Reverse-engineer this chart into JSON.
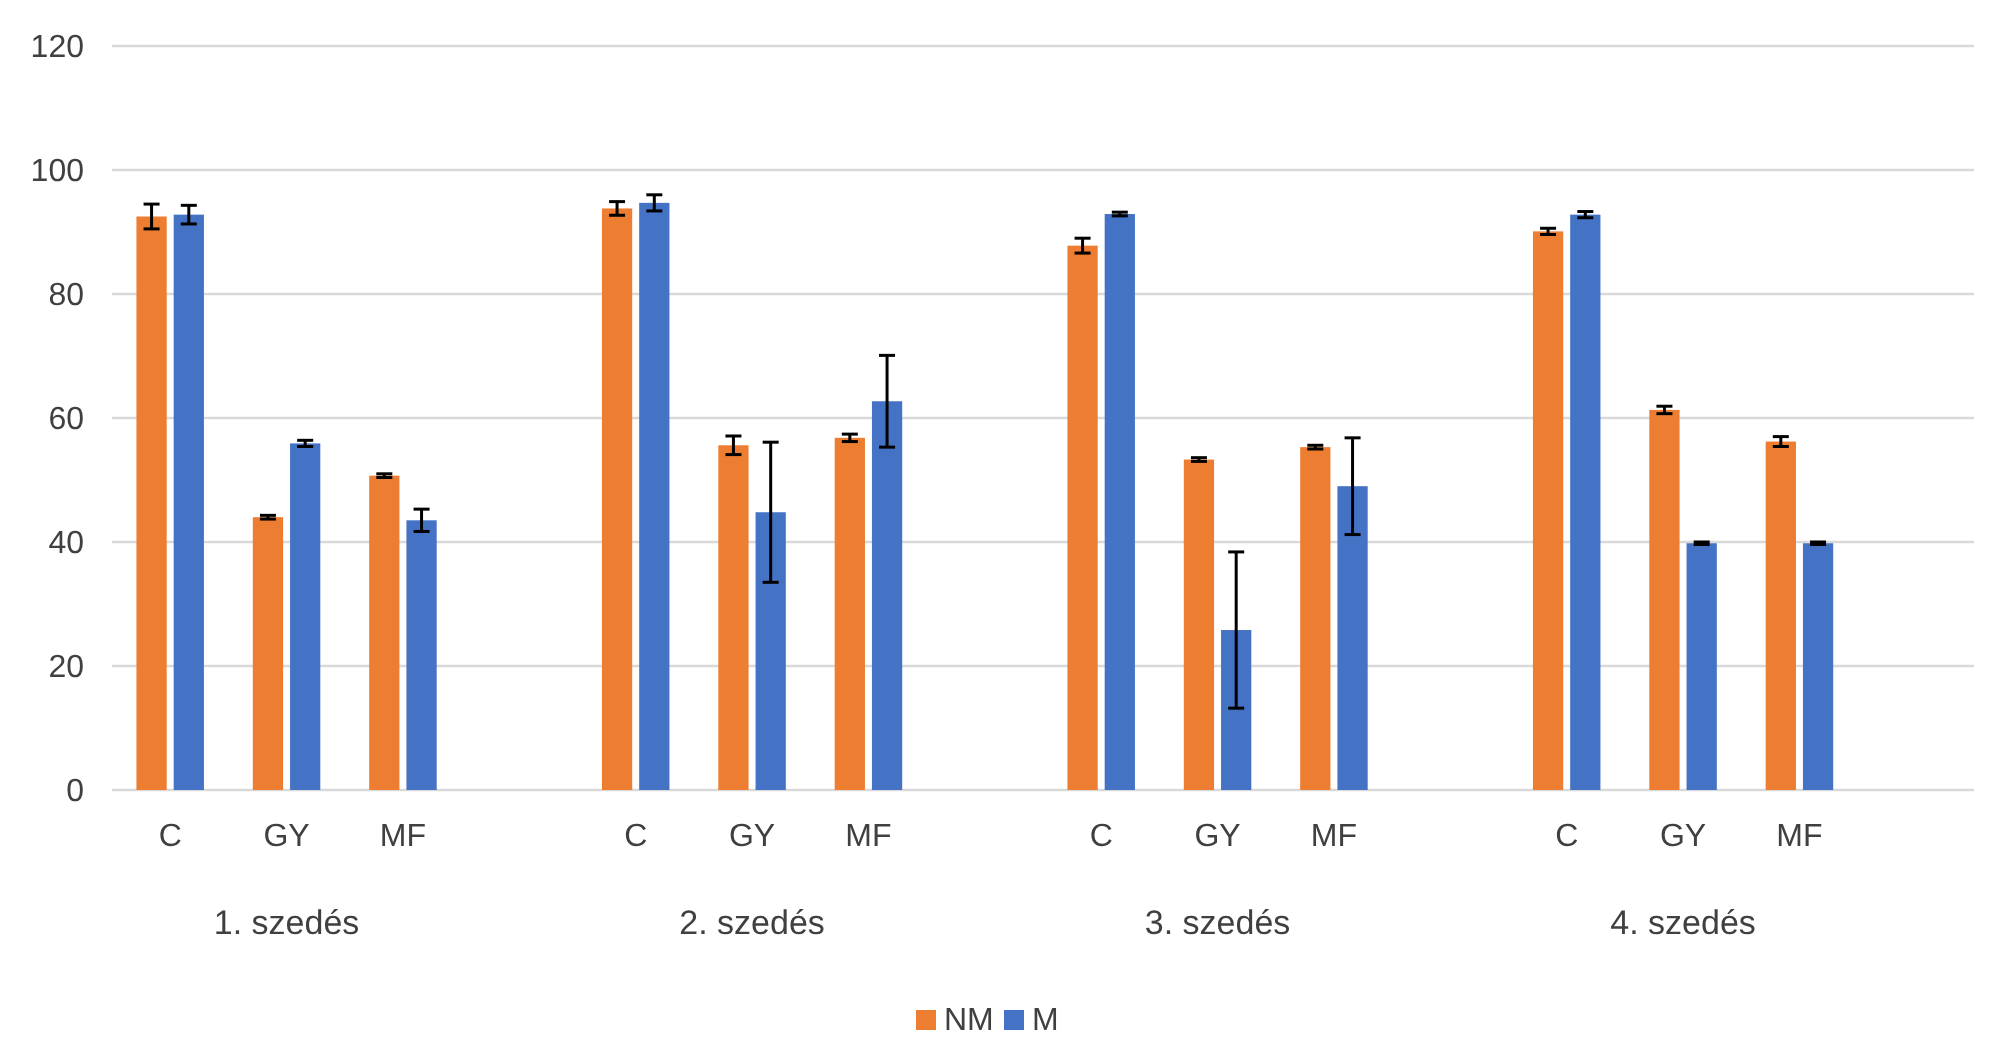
{
  "chart_data": {
    "type": "bar",
    "categories": [
      "C",
      "GY",
      "MF",
      null,
      "C",
      "GY",
      "MF",
      null,
      "C",
      "GY",
      "MF",
      null,
      "C",
      "GY",
      "MF",
      null
    ],
    "series": [
      {
        "name": "NM",
        "color": "#ed7d31",
        "values": [
          92.5,
          44,
          50.7,
          null,
          93.8,
          55.6,
          56.8,
          null,
          87.8,
          53.3,
          55.3,
          null,
          90.1,
          61.3,
          56.2,
          null
        ],
        "errors": [
          2,
          0.3,
          0.3,
          null,
          1.1,
          1.5,
          0.6,
          null,
          1.2,
          0.3,
          0.3,
          null,
          0.5,
          0.6,
          0.8,
          null
        ]
      },
      {
        "name": "M",
        "color": "#4472c4",
        "values": [
          92.8,
          55.9,
          43.5,
          null,
          94.7,
          44.8,
          62.7,
          null,
          92.9,
          25.8,
          49,
          null,
          92.8,
          39.8,
          39.8,
          null
        ],
        "errors": [
          1.5,
          0.5,
          1.8,
          null,
          1.3,
          11.3,
          7.4,
          null,
          0.3,
          12.6,
          7.8,
          null,
          0.5,
          0.2,
          0.2,
          null
        ]
      }
    ],
    "annotations": [
      "1. szedés",
      "2. szedés",
      "3. szedés",
      "4. szedés"
    ],
    "ylim": [
      0,
      120
    ],
    "yticks": [
      0,
      20,
      40,
      60,
      80,
      100,
      120
    ],
    "grid": "y",
    "legend": "bottom"
  }
}
